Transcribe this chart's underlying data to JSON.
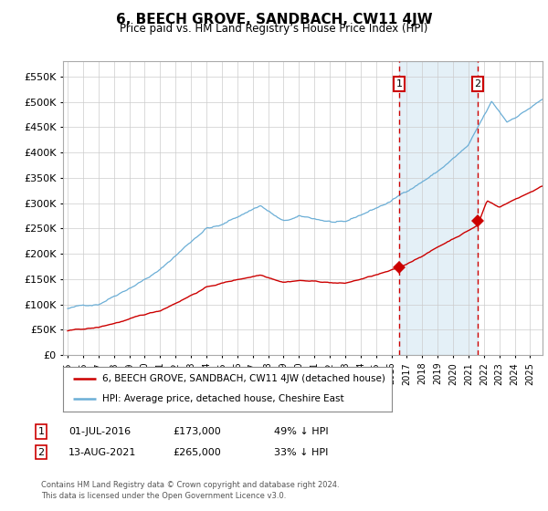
{
  "title": "6, BEECH GROVE, SANDBACH, CW11 4JW",
  "subtitle": "Price paid vs. HM Land Registry’s House Price Index (HPI)",
  "hpi_label": "HPI: Average price, detached house, Cheshire East",
  "property_label": "6, BEECH GROVE, SANDBACH, CW11 4JW (detached house)",
  "transaction1": {
    "label": "1",
    "date": "01-JUL-2016",
    "price": 173000,
    "pct": "49% ↓ HPI"
  },
  "transaction2": {
    "label": "2",
    "date": "13-AUG-2021",
    "price": 265000,
    "pct": "33% ↓ HPI"
  },
  "footnote": "Contains HM Land Registry data © Crown copyright and database right 2024.\nThis data is licensed under the Open Government Licence v3.0.",
  "hpi_color": "#6baed6",
  "hpi_fill_color": "#d6e9f8",
  "property_color": "#cc0000",
  "dashed_color": "#cc0000",
  "background_color": "#ffffff",
  "grid_color": "#cccccc",
  "ylim": [
    0,
    580000
  ],
  "yticks": [
    0,
    50000,
    100000,
    150000,
    200000,
    250000,
    300000,
    350000,
    400000,
    450000,
    500000,
    550000
  ],
  "year_start": 1995,
  "year_end": 2025,
  "t1_year": 2016.5,
  "t2_year": 2021.6,
  "t1_price": 173000,
  "t2_price": 265000
}
